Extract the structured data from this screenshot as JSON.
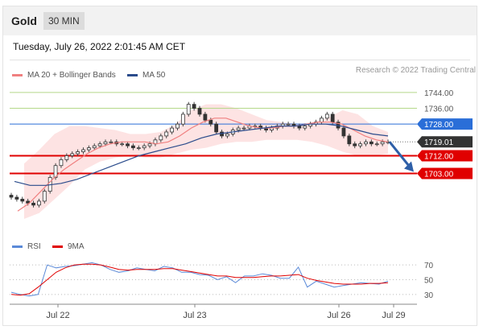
{
  "header": {
    "title": "Gold",
    "timeframe": "30 MIN"
  },
  "datetime": "Tuesday, July 26, 2022 2:01:45 AM CET",
  "legend": {
    "ma_bb": "MA 20 + Bollinger Bands",
    "ma50": "MA 50",
    "research": "Research © 2022 Trading Central"
  },
  "rsi_legend": {
    "rsi": "RSI",
    "ma": "9MA"
  },
  "colors": {
    "ma20": "#f08080",
    "ma50": "#2b4c8c",
    "bollinger_fill": "#fcdcdc",
    "resistance": "#b5d88a",
    "pivot": "#2a6ed8",
    "support": "#e00000",
    "current": "#333333",
    "arrow": "#2e5fa8",
    "rsi": "#5b8ad8",
    "rsi_ma": "#e00000"
  },
  "chart_data": [
    {
      "type": "line",
      "title": "",
      "x_ticks": [
        "Jul 22",
        "Jul 23",
        "Jul 26",
        "Jul 29"
      ],
      "price_levels": [
        {
          "value": 1744.0,
          "label": "1744.00",
          "kind": "resistance"
        },
        {
          "value": 1736.0,
          "label": "1736.00",
          "kind": "resistance"
        },
        {
          "value": 1728.0,
          "label": "1728.00",
          "kind": "pivot"
        },
        {
          "value": 1719.01,
          "label": "1719.01",
          "kind": "current"
        },
        {
          "value": 1712.0,
          "label": "1712.00",
          "kind": "support"
        },
        {
          "value": 1703.0,
          "label": "1703.00",
          "kind": "support"
        }
      ],
      "ylim": [
        1680,
        1746
      ],
      "close_series": [
        1691,
        1690,
        1689,
        1688,
        1687,
        1689,
        1694,
        1701,
        1707,
        1710,
        1712,
        1713,
        1714,
        1715,
        1716,
        1717,
        1718,
        1719,
        1719,
        1718,
        1718,
        1717,
        1716,
        1716,
        1717,
        1718,
        1720,
        1722,
        1724,
        1726,
        1728,
        1733,
        1738,
        1736,
        1733,
        1730,
        1728,
        1724,
        1722,
        1723,
        1725,
        1726,
        1726,
        1727,
        1727,
        1726,
        1725,
        1726,
        1727,
        1728,
        1728,
        1727,
        1726,
        1727,
        1728,
        1729,
        1731,
        1733,
        1729,
        1726,
        1722,
        1718,
        1717,
        1718,
        1719,
        1718,
        1718,
        1719,
        1719
      ],
      "ma20_series": [
        1684,
        1688,
        1694,
        1700,
        1705,
        1709,
        1713,
        1716,
        1718,
        1719,
        1719,
        1719,
        1718,
        1719,
        1722,
        1726,
        1729,
        1731,
        1731,
        1729,
        1727,
        1726,
        1726,
        1727,
        1727,
        1728,
        1729,
        1729,
        1728,
        1725,
        1722,
        1720,
        1719
      ],
      "ma50_series": [
        1699,
        1697,
        1697,
        1698,
        1700,
        1703,
        1706,
        1709,
        1712,
        1714,
        1716,
        1718,
        1721,
        1723,
        1724,
        1725,
        1726,
        1727,
        1727,
        1728,
        1728,
        1727,
        1725,
        1723,
        1722
      ],
      "bollinger_upper": [
        1708,
        1715,
        1723,
        1727,
        1727,
        1726,
        1725,
        1723,
        1723,
        1724,
        1728,
        1735,
        1738,
        1738,
        1736,
        1733,
        1730,
        1729,
        1728,
        1729,
        1731,
        1735,
        1733,
        1727,
        1724
      ],
      "bollinger_lower": [
        1680,
        1683,
        1690,
        1697,
        1705,
        1709,
        1711,
        1712,
        1711,
        1711,
        1713,
        1715,
        1716,
        1718,
        1719,
        1719,
        1720,
        1720,
        1720,
        1719,
        1717,
        1714,
        1712,
        1712,
        1713
      ]
    },
    {
      "type": "line",
      "title": "",
      "y_ticks": [
        70,
        50,
        30
      ],
      "ylim": [
        20,
        80
      ],
      "series": [
        {
          "name": "RSI",
          "values": [
            33,
            30,
            28,
            30,
            70,
            66,
            68,
            69,
            71,
            73,
            70,
            64,
            60,
            62,
            66,
            64,
            62,
            68,
            66,
            60,
            60,
            57,
            56,
            50,
            54,
            46,
            55,
            55,
            58,
            56,
            52,
            52,
            67,
            40,
            48,
            44,
            40,
            42,
            44,
            46,
            45,
            44,
            48
          ]
        },
        {
          "name": "9MA",
          "values": [
            30,
            29,
            31,
            40,
            50,
            60,
            66,
            70,
            71,
            71,
            70,
            67,
            64,
            63,
            64,
            64,
            64,
            65,
            65,
            63,
            61,
            59,
            57,
            55,
            55,
            53,
            53,
            53,
            54,
            55,
            55,
            56,
            57,
            52,
            49,
            47,
            45,
            44,
            44,
            44,
            45,
            45,
            46
          ]
        }
      ]
    }
  ]
}
